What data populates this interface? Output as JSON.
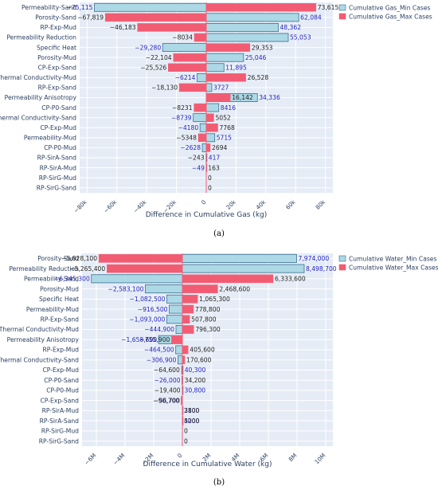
{
  "chart_data": [
    {
      "type": "bar",
      "orientation": "horizontal",
      "panel_label": "(a)",
      "xlabel": "Difference in Cumulative Gas (kg)",
      "xlim": [
        -85000,
        85000
      ],
      "xticks": [
        -80000,
        -60000,
        -40000,
        -20000,
        0,
        20000,
        40000,
        60000,
        80000
      ],
      "xtick_labels": [
        "−80k",
        "−60k",
        "−40k",
        "−20k",
        "0",
        "20k",
        "40k",
        "60k",
        "80k"
      ],
      "grid": true,
      "legend_placement": "top-right",
      "categories": [
        "Permeability-Sand",
        "Porosity-Sand",
        "RP-Exp-Mud",
        "Permeability Reduction",
        "Specific Heat",
        "Porosity-Mud",
        "CP-Exp-Sand",
        "Thermal Conductivity-Mud",
        "RP-Exp-Sand",
        "Permeability Anisotropy",
        "CP-P0-Sand",
        "Thermal Conductivity-Sand",
        "CP-Exp-Mud",
        "Permeability-Mud",
        "CP-P0-Mud",
        "RP-SirA-Sand",
        "RP-SirA-Mud",
        "RP-SirG-Mud",
        "RP-SirG-Sand"
      ],
      "series": [
        {
          "name": "Cumulative Gas_Min Cases",
          "color": "#add8e6",
          "values": [
            -75115,
            62084,
            48362,
            55053,
            -29280,
            25046,
            11895,
            -6214,
            3727,
            34336,
            8416,
            -8739,
            -4180,
            5715,
            -2628,
            417,
            -49,
            0,
            0
          ],
          "labels": [
            "−75,115",
            "62,084",
            "48,362",
            "55,053",
            "−29,280",
            "25,046",
            "11,895",
            "−6214",
            "3727",
            "34,336",
            "8416",
            "−8739",
            "−4180",
            "5715",
            "−2628",
            "417",
            "−49",
            "",
            ""
          ]
        },
        {
          "name": "Cumulative Gas_Max Cases",
          "color": "#f25c73",
          "values": [
            73615,
            -67819,
            -46183,
            -8034,
            29353,
            -22104,
            -25526,
            26528,
            -18130,
            16142,
            -8231,
            5052,
            7768,
            -5348,
            2694,
            -243,
            163,
            0,
            0
          ],
          "labels": [
            "73,615",
            "−67,819",
            "−46,183",
            "−8034",
            "29,353",
            "−22,104",
            "−25,526",
            "26,528",
            "−18,130",
            "16,142",
            "−8231",
            "5052",
            "7768",
            "−5348",
            "2694",
            "−243",
            "163",
            "0",
            "0"
          ]
        }
      ]
    },
    {
      "type": "bar",
      "orientation": "horizontal",
      "panel_label": "(b)",
      "xlabel": "Difference in Cumulative Water (kg)",
      "xlim": [
        -7000000,
        10500000
      ],
      "xticks": [
        -6000000,
        -4000000,
        -2000000,
        0,
        2000000,
        4000000,
        6000000,
        8000000,
        10000000
      ],
      "xtick_labels": [
        "−6M",
        "−4M",
        "−2M",
        "0",
        "2M",
        "4M",
        "6M",
        "8M",
        "10M"
      ],
      "grid": true,
      "legend_placement": "top-right",
      "categories": [
        "Porosity-Sand",
        "Permeability Reduction",
        "Permeability-Sand",
        "Porosity-Mud",
        "Specific Heat",
        "Permeability-Mud",
        "RP-Exp-Sand",
        "Thermal Conductivity-Mud",
        "Permeability Anisotropy",
        "RP-Exp-Mud",
        "Thermal Conductivity-Sand",
        "CP-Exp-Mud",
        "CP-P0-Sand",
        "CP-P0-Mud",
        "CP-Exp-Sand",
        "RP-SirA-Mud",
        "RP-SirA-Sand",
        "RP-SirG-Mud",
        "RP-SirG-Sand"
      ],
      "series": [
        {
          "name": "Cumulative Water_Min Cases",
          "color": "#add8e6",
          "values": [
            7974000,
            8498700,
            -6345300,
            -2583100,
            -1082500,
            -916500,
            -1093000,
            -444900,
            -1658600,
            -464500,
            -306900,
            40300,
            -26000,
            30800,
            -56700,
            2100,
            4200,
            0,
            0
          ],
          "labels": [
            "7,974,000",
            "8,498,700",
            "−6,345,300",
            "−2,583,100",
            "−1,082,500",
            "−916,500",
            "−1,093,000",
            "−444,900",
            "−1,658,600",
            "−464,500",
            "−306,900",
            "40,300",
            "−26,000",
            "30,800",
            "−56,700",
            "2100",
            "4200",
            "",
            ""
          ]
        },
        {
          "name": "Cumulative Water_Max Cases",
          "color": "#f25c73",
          "values": [
            -5828100,
            -5265400,
            6333600,
            2468600,
            1065300,
            778800,
            507800,
            796300,
            -755900,
            405600,
            170600,
            -64600,
            34200,
            -19400,
            -90700,
            3800,
            5000,
            0,
            0
          ],
          "labels": [
            "−5,828,100",
            "−5,265,400",
            "6,333,600",
            "2,468,600",
            "1,065,300",
            "778,800",
            "507,800",
            "796,300",
            "−755,900",
            "405,600",
            "170,600",
            "−64,600",
            "34,200",
            "−19,400",
            "−90,700",
            "3800",
            "5000",
            "0",
            "0"
          ]
        }
      ]
    }
  ]
}
